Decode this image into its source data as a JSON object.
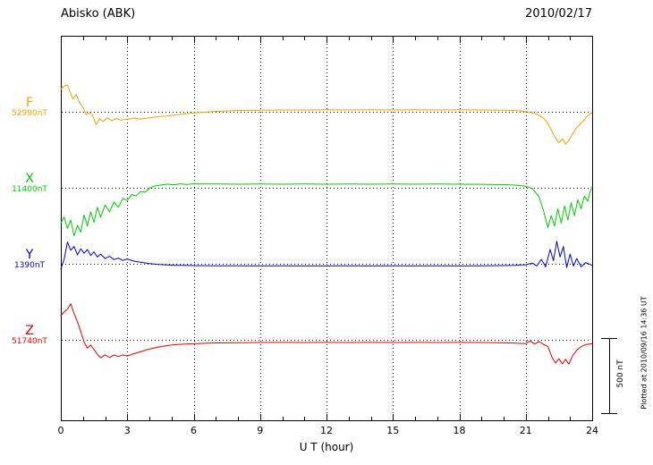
{
  "header": {
    "title": "Abisko (ABK)",
    "date": "2010/02/17"
  },
  "axis": {
    "xlabel": "U T (hour)"
  },
  "scale_bar": {
    "label": "500 nT",
    "nT": 500
  },
  "footer_note": "Plotted at 2010/09/16 14:36 UT",
  "chart_data": {
    "type": "line",
    "title": "Abisko (ABK)",
    "date": "2010/02/17",
    "xlabel": "U T (hour)",
    "x_range": [
      0,
      24
    ],
    "x_ticks": [
      0,
      3,
      6,
      9,
      12,
      15,
      18,
      21,
      24
    ],
    "scale_nT": 500,
    "grid": "dotted",
    "series": [
      {
        "name": "F",
        "baseline_label": "52990nT",
        "color": "#f5a000",
        "points": [
          [
            0,
            150
          ],
          [
            0.15,
            170
          ],
          [
            0.3,
            178
          ],
          [
            0.45,
            120
          ],
          [
            0.55,
            85
          ],
          [
            0.7,
            115
          ],
          [
            0.85,
            60
          ],
          [
            1.0,
            30
          ],
          [
            1.15,
            -20
          ],
          [
            1.3,
            -5
          ],
          [
            1.45,
            -30
          ],
          [
            1.6,
            -85
          ],
          [
            1.75,
            -45
          ],
          [
            1.9,
            -65
          ],
          [
            2.1,
            -40
          ],
          [
            2.3,
            -60
          ],
          [
            2.5,
            -45
          ],
          [
            2.7,
            -55
          ],
          [
            3.0,
            -50
          ],
          [
            3.3,
            -42
          ],
          [
            3.6,
            -48
          ],
          [
            4.0,
            -40
          ],
          [
            4.4,
            -32
          ],
          [
            4.8,
            -28
          ],
          [
            5.2,
            -20
          ],
          [
            5.6,
            -14
          ],
          [
            6.0,
            -8
          ],
          [
            6.5,
            -3
          ],
          [
            7,
            3
          ],
          [
            7.5,
            6
          ],
          [
            8,
            9
          ],
          [
            9,
            11
          ],
          [
            10,
            12
          ],
          [
            11,
            12
          ],
          [
            12,
            13
          ],
          [
            13,
            12
          ],
          [
            14,
            13
          ],
          [
            15,
            12
          ],
          [
            16,
            13
          ],
          [
            17,
            12
          ],
          [
            18,
            13
          ],
          [
            19,
            12
          ],
          [
            20,
            11
          ],
          [
            20.5,
            9
          ],
          [
            21,
            2
          ],
          [
            21.3,
            -8
          ],
          [
            21.6,
            -22
          ],
          [
            21.9,
            -55
          ],
          [
            22.1,
            -105
          ],
          [
            22.3,
            -165
          ],
          [
            22.5,
            -205
          ],
          [
            22.65,
            -180
          ],
          [
            22.8,
            -215
          ],
          [
            22.95,
            -190
          ],
          [
            23.1,
            -150
          ],
          [
            23.3,
            -105
          ],
          [
            23.6,
            -60
          ],
          [
            23.8,
            -25
          ],
          [
            24,
            -5
          ]
        ]
      },
      {
        "name": "X",
        "baseline_label": "11400nT",
        "color": "#00cc00",
        "points": [
          [
            0,
            -235
          ],
          [
            0.15,
            -195
          ],
          [
            0.3,
            -270
          ],
          [
            0.45,
            -215
          ],
          [
            0.6,
            -320
          ],
          [
            0.75,
            -250
          ],
          [
            0.9,
            -295
          ],
          [
            1.05,
            -180
          ],
          [
            1.2,
            -255
          ],
          [
            1.35,
            -160
          ],
          [
            1.5,
            -230
          ],
          [
            1.65,
            -130
          ],
          [
            1.8,
            -195
          ],
          [
            2.0,
            -115
          ],
          [
            2.2,
            -160
          ],
          [
            2.4,
            -95
          ],
          [
            2.6,
            -130
          ],
          [
            2.8,
            -70
          ],
          [
            3.0,
            -85
          ],
          [
            3.2,
            -45
          ],
          [
            3.4,
            -55
          ],
          [
            3.6,
            -25
          ],
          [
            3.8,
            -30
          ],
          [
            4.0,
            -5
          ],
          [
            4.2,
            10
          ],
          [
            4.5,
            18
          ],
          [
            4.8,
            24
          ],
          [
            5.1,
            20
          ],
          [
            5.4,
            26
          ],
          [
            5.7,
            22
          ],
          [
            6,
            26
          ],
          [
            7,
            25
          ],
          [
            8,
            24
          ],
          [
            9,
            25
          ],
          [
            10,
            24
          ],
          [
            11,
            25
          ],
          [
            12,
            24
          ],
          [
            13,
            25
          ],
          [
            14,
            24
          ],
          [
            15,
            25
          ],
          [
            16,
            24
          ],
          [
            17,
            25
          ],
          [
            18,
            24
          ],
          [
            19,
            23
          ],
          [
            20,
            21
          ],
          [
            20.5,
            18
          ],
          [
            21,
            10
          ],
          [
            21.3,
            -5
          ],
          [
            21.6,
            -60
          ],
          [
            21.8,
            -150
          ],
          [
            22.0,
            -265
          ],
          [
            22.15,
            -185
          ],
          [
            22.3,
            -255
          ],
          [
            22.45,
            -140
          ],
          [
            22.6,
            -235
          ],
          [
            22.75,
            -120
          ],
          [
            22.9,
            -215
          ],
          [
            23.05,
            -100
          ],
          [
            23.2,
            -185
          ],
          [
            23.35,
            -80
          ],
          [
            23.5,
            -140
          ],
          [
            23.65,
            -55
          ],
          [
            23.8,
            -90
          ],
          [
            23.9,
            -30
          ],
          [
            24,
            8
          ]
        ]
      },
      {
        "name": "Y",
        "baseline_label": "1390nT",
        "color": "#0000dd",
        "points": [
          [
            0,
            -35
          ],
          [
            0.15,
            30
          ],
          [
            0.3,
            145
          ],
          [
            0.45,
            90
          ],
          [
            0.6,
            115
          ],
          [
            0.75,
            60
          ],
          [
            0.9,
            100
          ],
          [
            1.05,
            70
          ],
          [
            1.2,
            95
          ],
          [
            1.35,
            55
          ],
          [
            1.5,
            80
          ],
          [
            1.65,
            45
          ],
          [
            1.8,
            65
          ],
          [
            2.0,
            35
          ],
          [
            2.2,
            50
          ],
          [
            2.4,
            28
          ],
          [
            2.6,
            38
          ],
          [
            2.8,
            22
          ],
          [
            3.0,
            32
          ],
          [
            3.3,
            18
          ],
          [
            3.6,
            10
          ],
          [
            4.0,
            2
          ],
          [
            4.4,
            -4
          ],
          [
            4.8,
            -8
          ],
          [
            5.2,
            -10
          ],
          [
            5.6,
            -11
          ],
          [
            6,
            -12
          ],
          [
            7,
            -13
          ],
          [
            8,
            -13
          ],
          [
            9,
            -14
          ],
          [
            10,
            -13
          ],
          [
            11,
            -14
          ],
          [
            12,
            -14
          ],
          [
            13,
            -13
          ],
          [
            14,
            -14
          ],
          [
            15,
            -13
          ],
          [
            16,
            -14
          ],
          [
            17,
            -13
          ],
          [
            18,
            -14
          ],
          [
            19,
            -13
          ],
          [
            20,
            -12
          ],
          [
            20.5,
            -10
          ],
          [
            21,
            -6
          ],
          [
            21.3,
            5
          ],
          [
            21.5,
            -15
          ],
          [
            21.7,
            30
          ],
          [
            21.9,
            -20
          ],
          [
            22.1,
            95
          ],
          [
            22.25,
            20
          ],
          [
            22.4,
            150
          ],
          [
            22.55,
            45
          ],
          [
            22.7,
            115
          ],
          [
            22.85,
            -25
          ],
          [
            23.0,
            65
          ],
          [
            23.15,
            -15
          ],
          [
            23.3,
            35
          ],
          [
            23.5,
            -20
          ],
          [
            23.7,
            8
          ],
          [
            24,
            -10
          ]
        ]
      },
      {
        "name": "Z",
        "baseline_label": "51740nT",
        "color": "#e60000",
        "points": [
          [
            0,
            160
          ],
          [
            0.15,
            185
          ],
          [
            0.3,
            205
          ],
          [
            0.45,
            240
          ],
          [
            0.6,
            175
          ],
          [
            0.75,
            120
          ],
          [
            0.9,
            55
          ],
          [
            1.05,
            -15
          ],
          [
            1.2,
            -55
          ],
          [
            1.35,
            -35
          ],
          [
            1.5,
            -65
          ],
          [
            1.65,
            -95
          ],
          [
            1.8,
            -120
          ],
          [
            2.0,
            -100
          ],
          [
            2.2,
            -118
          ],
          [
            2.4,
            -102
          ],
          [
            2.6,
            -112
          ],
          [
            2.8,
            -100
          ],
          [
            3.0,
            -108
          ],
          [
            3.3,
            -92
          ],
          [
            3.6,
            -80
          ],
          [
            4.0,
            -62
          ],
          [
            4.4,
            -48
          ],
          [
            4.8,
            -38
          ],
          [
            5.2,
            -32
          ],
          [
            5.6,
            -28
          ],
          [
            6,
            -26
          ],
          [
            6.5,
            -23
          ],
          [
            7,
            -21
          ],
          [
            8,
            -19
          ],
          [
            9,
            -18
          ],
          [
            10,
            -17
          ],
          [
            11,
            -18
          ],
          [
            12,
            -17
          ],
          [
            13,
            -18
          ],
          [
            14,
            -17
          ],
          [
            15,
            -18
          ],
          [
            16,
            -17
          ],
          [
            17,
            -18
          ],
          [
            18,
            -17
          ],
          [
            19,
            -18
          ],
          [
            20,
            -20
          ],
          [
            20.5,
            -22
          ],
          [
            21,
            -25
          ],
          [
            21.2,
            -8
          ],
          [
            21.4,
            -28
          ],
          [
            21.6,
            -12
          ],
          [
            21.8,
            -30
          ],
          [
            22.0,
            -45
          ],
          [
            22.2,
            -120
          ],
          [
            22.35,
            -155
          ],
          [
            22.5,
            -125
          ],
          [
            22.65,
            -160
          ],
          [
            22.8,
            -130
          ],
          [
            22.95,
            -162
          ],
          [
            23.1,
            -110
          ],
          [
            23.3,
            -70
          ],
          [
            23.5,
            -45
          ],
          [
            23.7,
            -32
          ],
          [
            24,
            -26
          ]
        ]
      }
    ]
  }
}
